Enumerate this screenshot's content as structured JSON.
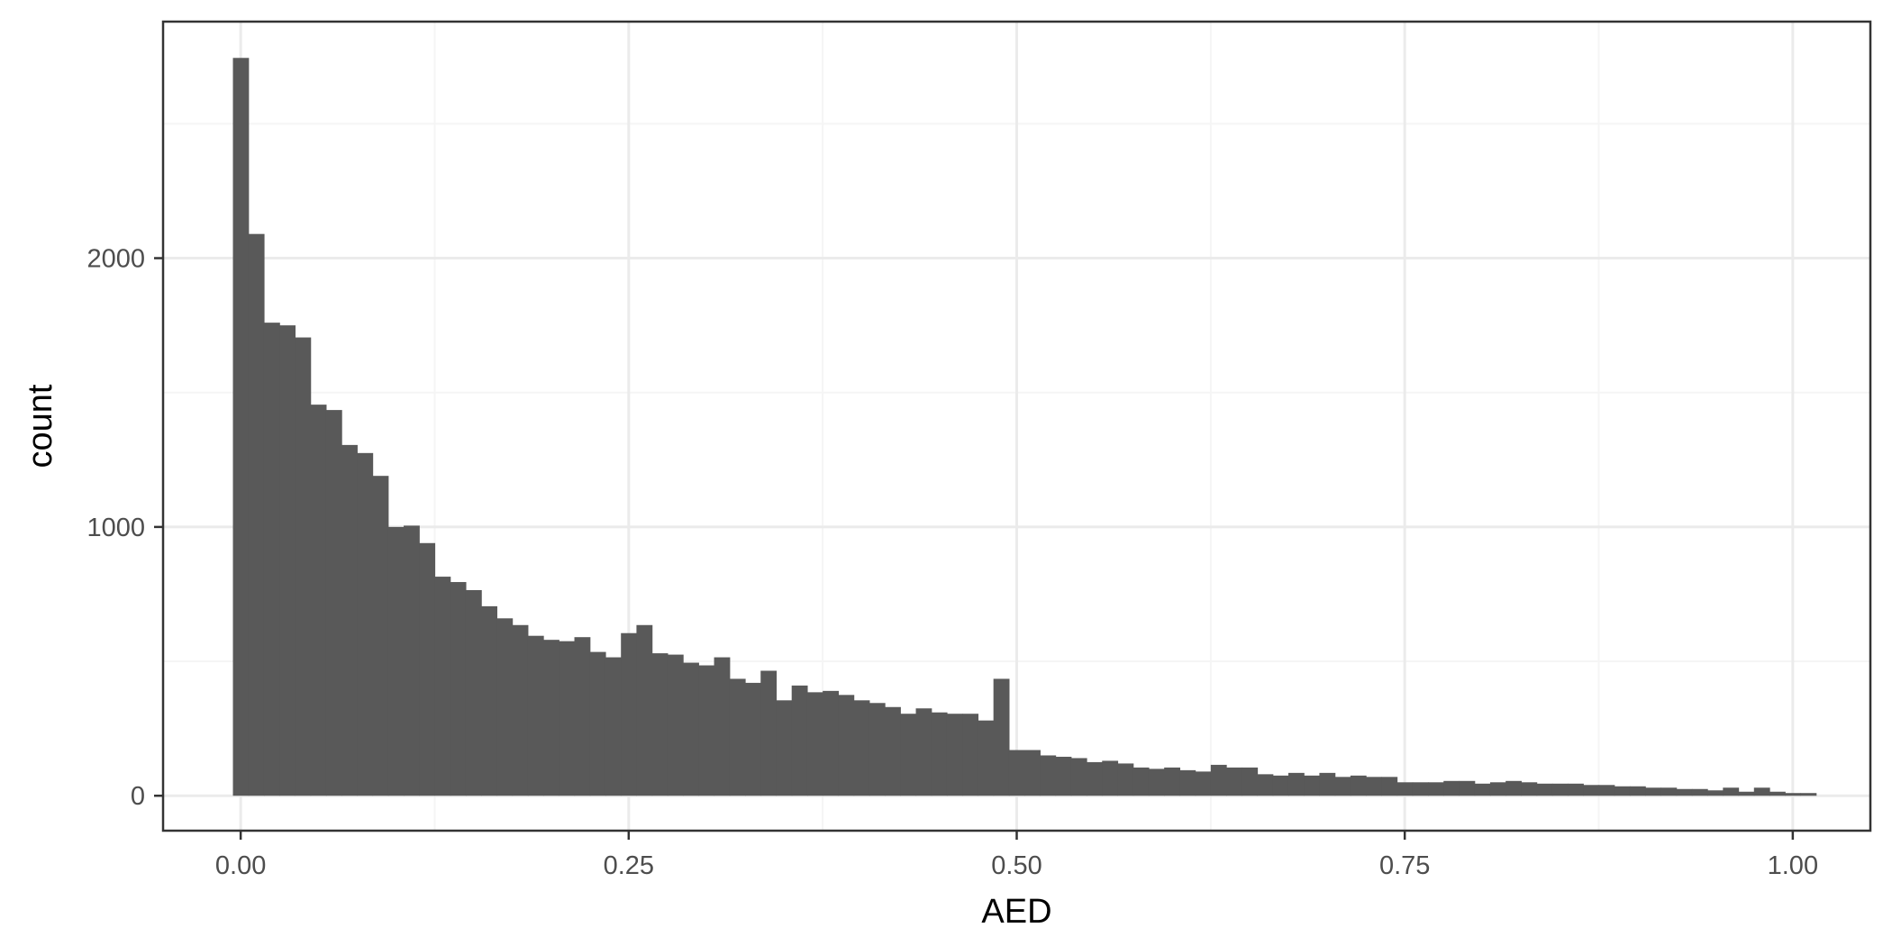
{
  "chart_data": {
    "type": "bar",
    "title": "",
    "xlabel": "AED",
    "ylabel": "count",
    "xlim": [
      -0.05,
      1.05
    ],
    "ylim": [
      -130,
      2880
    ],
    "x_ticks": [
      0,
      0.25,
      0.5,
      0.75,
      1.0
    ],
    "x_tick_labels": [
      "0.00",
      "0.25",
      "0.50",
      "0.75",
      "1.00"
    ],
    "y_ticks": [
      0,
      1000,
      2000
    ],
    "y_tick_labels": [
      "0",
      "1000",
      "2000"
    ],
    "grid": true,
    "bar_color": "#595959",
    "bin_start": -0.005,
    "bin_width": 0.01,
    "values": [
      2745,
      2090,
      1760,
      1750,
      1705,
      1455,
      1435,
      1305,
      1275,
      1190,
      1000,
      1005,
      940,
      815,
      795,
      765,
      705,
      660,
      635,
      595,
      580,
      575,
      590,
      535,
      515,
      605,
      635,
      530,
      525,
      495,
      485,
      515,
      435,
      420,
      465,
      355,
      410,
      385,
      390,
      375,
      355,
      345,
      330,
      305,
      325,
      310,
      305,
      305,
      280,
      435,
      170,
      170,
      150,
      145,
      140,
      125,
      130,
      120,
      105,
      100,
      105,
      95,
      90,
      115,
      105,
      105,
      80,
      75,
      85,
      75,
      85,
      70,
      75,
      70,
      70,
      50,
      50,
      50,
      55,
      55,
      45,
      50,
      55,
      50,
      45,
      45,
      45,
      40,
      40,
      35,
      35,
      30,
      30,
      25,
      25,
      20,
      30,
      15,
      30,
      15,
      10,
      10
    ]
  },
  "colors": {
    "background": "#ffffff",
    "panel_border": "#333333",
    "grid_major": "#ebebeb",
    "grid_minor": "#f5f5f5",
    "tick_label": "#4d4d4d",
    "axis_title": "#000000"
  }
}
